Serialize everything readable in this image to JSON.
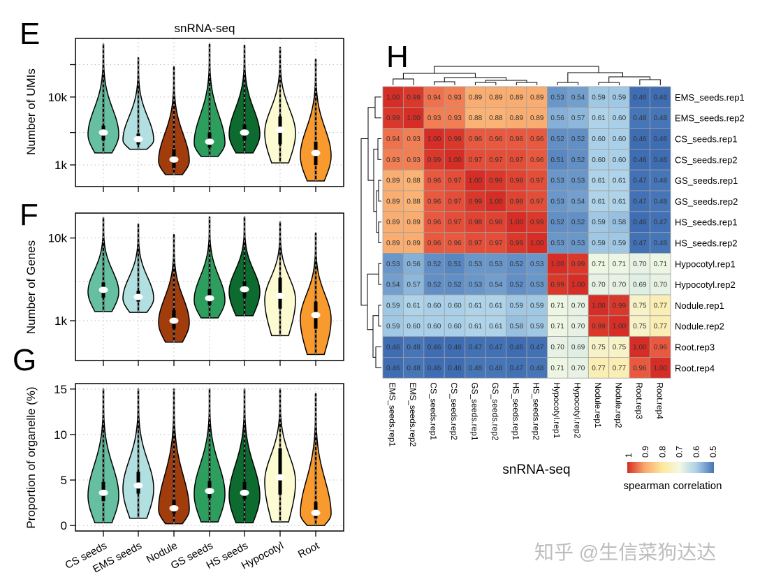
{
  "panels": {
    "E": {
      "letter": "E",
      "title": "snRNA-seq"
    },
    "F": {
      "letter": "F"
    },
    "G": {
      "letter": "G"
    },
    "H": {
      "letter": "H",
      "xlabel": "snRNA-seq"
    }
  },
  "watermark": "知乎 @生信菜狗达达",
  "chart_data": [
    {
      "type": "violin",
      "panel": "E",
      "title": "snRNA-seq",
      "ylabel": "Number of UMIs",
      "yscale": "log",
      "ylim": [
        480,
        73000
      ],
      "yticks": [
        {
          "value": 1000,
          "label": "1k"
        },
        {
          "value": 3000,
          "label": ""
        },
        {
          "value": 10000,
          "label": "10k"
        },
        {
          "value": 30000,
          "label": ""
        }
      ],
      "grid": true,
      "categories": [
        "CS seeds",
        "EMS seeds",
        "Nodule",
        "GS seeds",
        "HS seeds",
        "Hypocotyl",
        "Root"
      ],
      "series": [
        {
          "min": 1500,
          "max": 60000,
          "median": 3000,
          "q1": 2300,
          "q3": 3800
        },
        {
          "min": 1700,
          "max": 38000,
          "median": 2400,
          "q1": 2000,
          "q3": 2900
        },
        {
          "min": 720,
          "max": 28000,
          "median": 1200,
          "q1": 900,
          "q3": 1700
        },
        {
          "min": 1330,
          "max": 60000,
          "median": 2200,
          "q1": 1800,
          "q3": 3000
        },
        {
          "min": 1500,
          "max": 58000,
          "median": 3000,
          "q1": 2300,
          "q3": 3900
        },
        {
          "min": 1070,
          "max": 54000,
          "median": 3300,
          "q1": 2000,
          "q3": 5200
        },
        {
          "min": 580,
          "max": 36000,
          "median": 1500,
          "q1": 1000,
          "q3": 2200
        }
      ]
    },
    {
      "type": "violin",
      "panel": "F",
      "ylabel": "Number of Genes",
      "yscale": "log",
      "ylim": [
        330,
        20000
      ],
      "yticks": [
        {
          "value": 1000,
          "label": "1k"
        },
        {
          "value": 10000,
          "label": "10k"
        }
      ],
      "gridlines": [
        1000,
        3000,
        10000
      ],
      "grid": true,
      "categories": [
        "CS seeds",
        "EMS seeds",
        "Nodule",
        "GS seeds",
        "HS seeds",
        "Hypocotyl",
        "Root"
      ],
      "series": [
        {
          "min": 1290,
          "max": 17600,
          "median": 2360,
          "q1": 1900,
          "q3": 2900
        },
        {
          "min": 1260,
          "max": 14800,
          "median": 1940,
          "q1": 1700,
          "q3": 2300
        },
        {
          "min": 550,
          "max": 11000,
          "median": 1000,
          "q1": 800,
          "q3": 1350
        },
        {
          "min": 1080,
          "max": 18000,
          "median": 1870,
          "q1": 1550,
          "q3": 2400
        },
        {
          "min": 1150,
          "max": 18000,
          "median": 2400,
          "q1": 1900,
          "q3": 3000
        },
        {
          "min": 660,
          "max": 15700,
          "median": 2000,
          "q1": 1400,
          "q3": 3300
        },
        {
          "min": 390,
          "max": 11500,
          "median": 1170,
          "q1": 800,
          "q3": 1700
        }
      ]
    },
    {
      "type": "violin",
      "panel": "G",
      "ylabel": "Proportion of organelle (%)",
      "yscale": "linear",
      "ylim": [
        -0.6,
        15.6
      ],
      "yticks": [
        {
          "value": 0,
          "label": "0"
        },
        {
          "value": 5,
          "label": "5"
        },
        {
          "value": 10,
          "label": "10"
        },
        {
          "value": 15,
          "label": "15"
        }
      ],
      "grid": true,
      "categories": [
        "CS seeds",
        "EMS seeds",
        "Nodule",
        "GS seeds",
        "HS seeds",
        "Hypocotyl",
        "Root"
      ],
      "series": [
        {
          "min": 0.3,
          "max": 15,
          "median": 3.6,
          "q1": 2.7,
          "q3": 4.8
        },
        {
          "min": 0.8,
          "max": 15,
          "median": 4.4,
          "q1": 3.5,
          "q3": 5.9
        },
        {
          "min": 0.2,
          "max": 15,
          "median": 1.9,
          "q1": 1.3,
          "q3": 2.8
        },
        {
          "min": 0.4,
          "max": 15,
          "median": 3.8,
          "q1": 3.0,
          "q3": 4.9
        },
        {
          "min": 0.3,
          "max": 15,
          "median": 3.6,
          "q1": 2.9,
          "q3": 4.8
        },
        {
          "min": 0.4,
          "max": 15,
          "median": 5.3,
          "q1": 3.4,
          "q3": 8.5
        },
        {
          "min": 0.0,
          "max": 14.5,
          "median": 1.4,
          "q1": 0.8,
          "q3": 2.6
        }
      ]
    },
    {
      "type": "heatmap",
      "panel": "H",
      "xlabel": "snRNA-seq",
      "labels": [
        "EMS_seeds.rep1",
        "EMS_seeds.rep2",
        "CS_seeds.rep1",
        "CS_seeds.rep2",
        "GS_seeds.rep1",
        "GS_seeds.rep2",
        "HS_seeds.rep1",
        "HS_seeds.rep2",
        "Hypocotyl.rep1",
        "Hypocotyl.rep2",
        "Nodule.rep1",
        "Nodule.rep2",
        "Root.rep3",
        "Root.rep4"
      ],
      "values": [
        [
          1.0,
          0.99,
          0.94,
          0.93,
          0.89,
          0.89,
          0.89,
          0.89,
          0.53,
          0.54,
          0.59,
          0.59,
          0.46,
          0.46
        ],
        [
          0.99,
          1.0,
          0.93,
          0.93,
          0.88,
          0.88,
          0.89,
          0.89,
          0.56,
          0.57,
          0.61,
          0.6,
          0.48,
          0.48
        ],
        [
          0.94,
          0.93,
          1.0,
          0.99,
          0.96,
          0.96,
          0.96,
          0.96,
          0.52,
          0.52,
          0.6,
          0.6,
          0.46,
          0.46
        ],
        [
          0.93,
          0.93,
          0.99,
          1.0,
          0.97,
          0.97,
          0.97,
          0.96,
          0.51,
          0.52,
          0.6,
          0.6,
          0.46,
          0.46
        ],
        [
          0.89,
          0.88,
          0.96,
          0.97,
          1.0,
          0.99,
          0.98,
          0.97,
          0.53,
          0.53,
          0.61,
          0.61,
          0.47,
          0.48
        ],
        [
          0.89,
          0.88,
          0.96,
          0.97,
          0.99,
          1.0,
          0.98,
          0.97,
          0.53,
          0.54,
          0.61,
          0.61,
          0.47,
          0.48
        ],
        [
          0.89,
          0.89,
          0.96,
          0.97,
          0.98,
          0.98,
          1.0,
          0.99,
          0.52,
          0.52,
          0.59,
          0.58,
          0.46,
          0.47
        ],
        [
          0.89,
          0.89,
          0.96,
          0.96,
          0.97,
          0.97,
          0.99,
          1.0,
          0.53,
          0.53,
          0.59,
          0.59,
          0.47,
          0.48
        ],
        [
          0.53,
          0.56,
          0.52,
          0.51,
          0.53,
          0.53,
          0.52,
          0.53,
          1.0,
          0.99,
          0.71,
          0.71,
          0.7,
          0.71
        ],
        [
          0.54,
          0.57,
          0.52,
          0.52,
          0.53,
          0.54,
          0.52,
          0.53,
          0.99,
          1.0,
          0.7,
          0.7,
          0.69,
          0.7
        ],
        [
          0.59,
          0.61,
          0.6,
          0.6,
          0.61,
          0.61,
          0.59,
          0.59,
          0.71,
          0.7,
          1.0,
          0.99,
          0.75,
          0.77
        ],
        [
          0.59,
          0.6,
          0.6,
          0.6,
          0.61,
          0.61,
          0.58,
          0.59,
          0.71,
          0.7,
          0.99,
          1.0,
          0.75,
          0.77
        ],
        [
          0.46,
          0.48,
          0.46,
          0.46,
          0.47,
          0.47,
          0.46,
          0.47,
          0.7,
          0.69,
          0.75,
          0.75,
          1.0,
          0.96
        ],
        [
          0.46,
          0.48,
          0.46,
          0.46,
          0.48,
          0.48,
          0.47,
          0.48,
          0.71,
          0.7,
          0.77,
          0.77,
          0.96,
          1.0
        ]
      ],
      "dendrogram": true,
      "legend": {
        "title": "spearman correlation",
        "ticks": [
          "1",
          "0.9",
          "0.8",
          "0.7",
          "0.6",
          "0.5"
        ],
        "colors": [
          "#d62d26",
          "#f9a66b",
          "#fee79a",
          "#f3f9e3",
          "#a9d0e8",
          "#4575b4"
        ]
      }
    }
  ],
  "violin_colors": [
    "#66bfa0",
    "#b2dfe0",
    "#a13d0d",
    "#2e9e5e",
    "#0d6b2f",
    "#fdfbd2",
    "#f89a2e"
  ]
}
